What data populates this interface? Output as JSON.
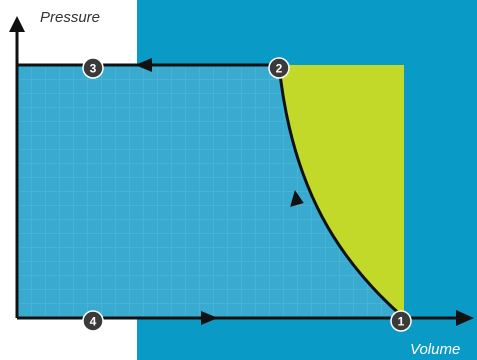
{
  "diagram": {
    "y_axis_label": "Pressure",
    "x_axis_label": "Volume",
    "points": [
      "1",
      "2",
      "3",
      "4"
    ],
    "colors": {
      "background_blue": "#0A9AC6",
      "grid_fill": "#3AABD0",
      "grid_line": "#6CC2DE",
      "work_area": "#C3D92A",
      "stroke": "#111111",
      "marker_fill": "#3A3A3A",
      "axis_label_on_white": "#333333",
      "axis_label_on_blue": "#ffffff"
    }
  }
}
